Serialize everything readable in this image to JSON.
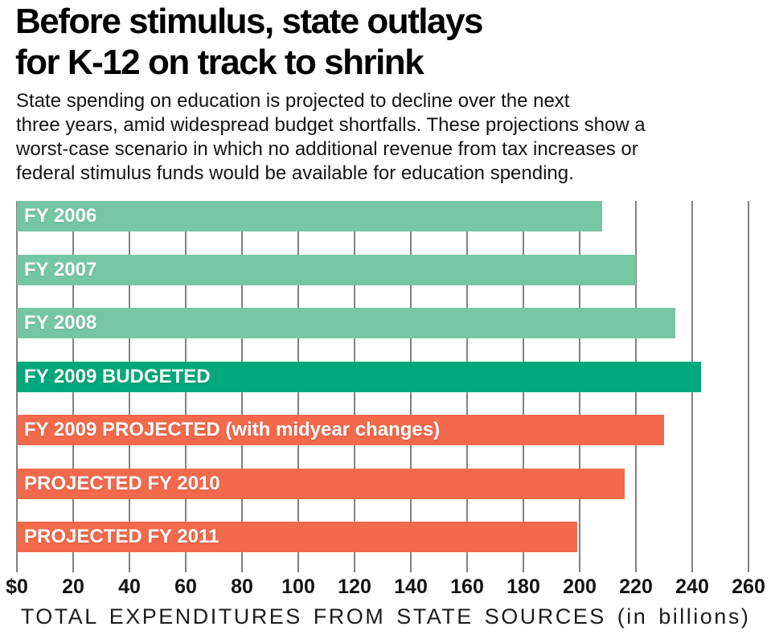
{
  "header": {
    "title_line1": "Before stimulus, state outlays",
    "title_line2": "for K-12 on track to shrink",
    "subtitle_lines": [
      "State spending on education is projected to decline over the next",
      "three years, amid widespread budget shortfalls. These projections show a",
      "worst-case scenario in which no additional revenue from tax increases or",
      "federal stimulus funds would be available for education spending."
    ]
  },
  "chart_data": {
    "type": "bar",
    "orientation": "horizontal",
    "title": "Before stimulus, state outlays for K-12 on track to shrink",
    "bars": [
      {
        "label": "FY 2006",
        "value": 208,
        "group": "historical",
        "color": "#75C7A4"
      },
      {
        "label": "FY 2007",
        "value": 220,
        "group": "historical",
        "color": "#75C7A4"
      },
      {
        "label": "FY 2008",
        "value": 234,
        "group": "historical",
        "color": "#75C7A4"
      },
      {
        "label": "FY 2009 BUDGETED",
        "value": 243,
        "group": "budgeted",
        "color": "#00A87C"
      },
      {
        "label": "FY 2009 PROJECTED (with midyear changes)",
        "value": 230,
        "group": "projected",
        "color": "#F2694B"
      },
      {
        "label": "PROJECTED FY 2010",
        "value": 216,
        "group": "projected",
        "color": "#F2694B"
      },
      {
        "label": "PROJECTED FY 2011",
        "value": 199,
        "group": "projected",
        "color": "#F2694B"
      }
    ],
    "xlabel": "TOTAL EXPENDITURES FROM STATE SOURCES (in billions)",
    "xlim": [
      0,
      260
    ],
    "xticks": [
      0,
      20,
      40,
      60,
      80,
      100,
      120,
      140,
      160,
      180,
      200,
      220,
      240,
      260
    ],
    "xtick_labels": [
      "$0",
      "20",
      "40",
      "60",
      "80",
      "100",
      "120",
      "140",
      "160",
      "180",
      "200",
      "220",
      "240",
      "260"
    ],
    "grid": "vertical",
    "legend": "none",
    "colors": {
      "historical": "#75C7A4",
      "budgeted": "#00A87C",
      "projected": "#F2694B",
      "gridline": "#828282",
      "text": "#131313",
      "bar_label": "#ffffff"
    }
  }
}
